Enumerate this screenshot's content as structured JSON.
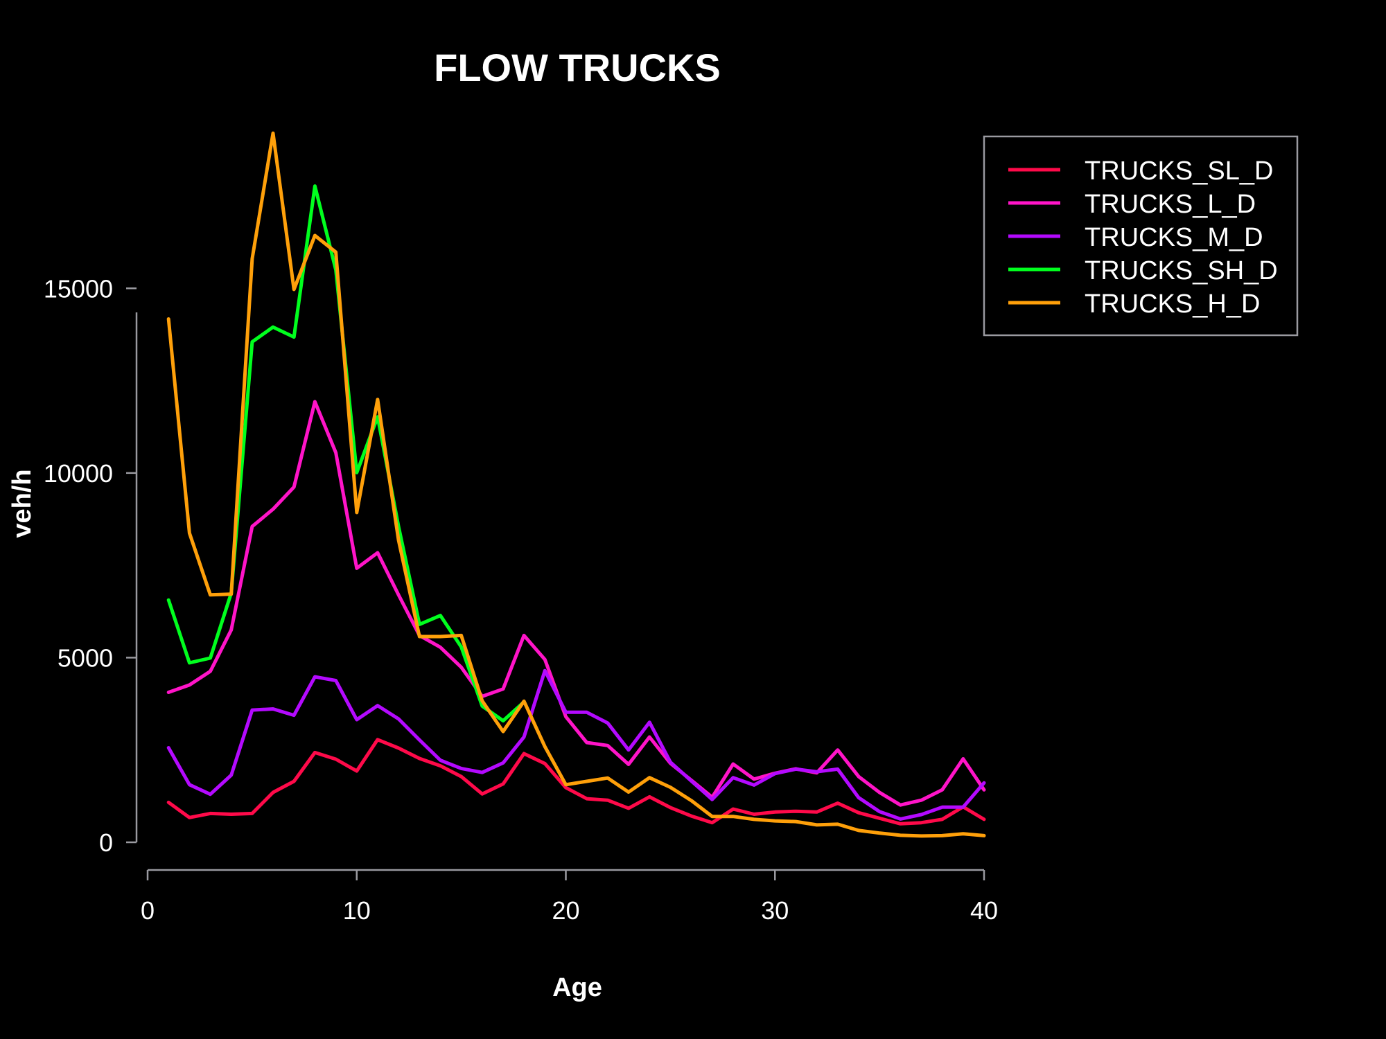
{
  "chart_data": {
    "type": "line",
    "title": "FLOW TRUCKS",
    "xlabel": "Age",
    "ylabel": "veh/h",
    "xlim": [
      0,
      40
    ],
    "ylim": [
      0,
      19000
    ],
    "xticks": [
      0,
      10,
      20,
      30,
      40
    ],
    "yticks": [
      0,
      5000,
      10000,
      15000
    ],
    "grid": false,
    "legend_position": "top-right",
    "x": [
      1,
      2,
      3,
      4,
      5,
      6,
      7,
      8,
      9,
      10,
      11,
      12,
      13,
      14,
      15,
      16,
      17,
      18,
      19,
      20,
      21,
      22,
      23,
      24,
      25,
      26,
      27,
      28,
      29,
      30,
      31,
      32,
      33,
      34,
      35,
      36,
      37,
      38,
      39,
      40
    ],
    "series": [
      {
        "name": "TRUCKS_SL_D",
        "color": "#ff0a4a",
        "values": [
          1080,
          670,
          780,
          760,
          780,
          1350,
          1650,
          2430,
          2250,
          1930,
          2780,
          2550,
          2270,
          2070,
          1780,
          1310,
          1580,
          2400,
          2130,
          1480,
          1180,
          1140,
          920,
          1230,
          940,
          710,
          530,
          900,
          760,
          820,
          840,
          820,
          1060,
          800,
          650,
          500,
          530,
          620,
          960,
          620
        ]
      },
      {
        "name": "TRUCKS_L_D",
        "color": "#ff14c8",
        "values": [
          4060,
          4260,
          4630,
          5750,
          8550,
          9020,
          9620,
          11930,
          10550,
          7420,
          7840,
          6700,
          5600,
          5280,
          4740,
          3950,
          4150,
          5600,
          4950,
          3400,
          2700,
          2620,
          2110,
          2850,
          2140,
          1680,
          1220,
          2120,
          1710,
          1870,
          1990,
          1880,
          2500,
          1780,
          1350,
          1010,
          1140,
          1420,
          2260,
          1420
        ]
      },
      {
        "name": "TRUCKS_M_D",
        "color": "#b40aff",
        "values": [
          2560,
          1560,
          1300,
          1820,
          3580,
          3610,
          3440,
          4480,
          4380,
          3320,
          3700,
          3340,
          2770,
          2220,
          2000,
          1890,
          2150,
          2850,
          4650,
          3520,
          3520,
          3230,
          2500,
          3250,
          2170,
          1660,
          1160,
          1750,
          1550,
          1860,
          1980,
          1910,
          1980,
          1210,
          830,
          630,
          750,
          950,
          950,
          1610
        ]
      },
      {
        "name": "TRUCKS_SH_D",
        "color": "#00ff1e",
        "values": [
          6560,
          4860,
          4990,
          6750,
          13550,
          13950,
          13680,
          17770,
          15500,
          10010,
          11520,
          8550,
          5900,
          6140,
          5290,
          3690,
          3290,
          3800,
          null,
          null,
          null,
          null,
          null,
          null,
          null,
          null,
          null,
          null,
          null,
          null,
          null,
          null,
          null,
          null,
          null,
          null,
          null,
          null,
          null,
          null
        ]
      },
      {
        "name": "TRUCKS_H_D",
        "color": "#ffa00a",
        "values": [
          14170,
          8370,
          6700,
          6720,
          15800,
          19200,
          14970,
          16430,
          15980,
          8930,
          11990,
          8180,
          5570,
          5570,
          5600,
          3830,
          3000,
          3820,
          2590,
          1560,
          1650,
          1740,
          1360,
          1750,
          1490,
          1130,
          700,
          700,
          620,
          580,
          560,
          470,
          490,
          320,
          250,
          190,
          170,
          180,
          230,
          180
        ]
      }
    ]
  }
}
